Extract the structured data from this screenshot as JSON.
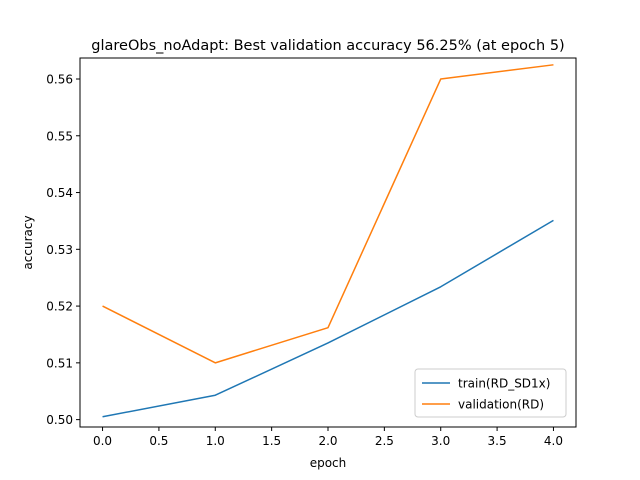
{
  "chart_data": {
    "type": "line",
    "title": "glareObs_noAdapt: Best validation accuracy 56.25% (at epoch 5)",
    "xlabel": "epoch",
    "ylabel": "accuracy",
    "xlim": [
      -0.2,
      4.2
    ],
    "ylim": [
      0.4987,
      0.5637
    ],
    "xticks": [
      0.0,
      0.5,
      1.0,
      1.5,
      2.0,
      2.5,
      3.0,
      3.5,
      4.0
    ],
    "xtick_labels": [
      "0.0",
      "0.5",
      "1.0",
      "1.5",
      "2.0",
      "2.5",
      "3.0",
      "3.5",
      "4.0"
    ],
    "yticks": [
      0.5,
      0.51,
      0.52,
      0.53,
      0.54,
      0.55,
      0.56
    ],
    "ytick_labels": [
      "0.50",
      "0.51",
      "0.52",
      "0.53",
      "0.54",
      "0.55",
      "0.56"
    ],
    "grid": false,
    "legend_position": "lower-right",
    "x": [
      0,
      1,
      2,
      3,
      4
    ],
    "series": [
      {
        "name": "train(RD_SD1x)",
        "color": "#1f77b4",
        "values": [
          0.5005,
          0.5043,
          0.5135,
          0.5234,
          0.5351
        ]
      },
      {
        "name": "validation(RD)",
        "color": "#ff7f0e",
        "values": [
          0.52,
          0.51,
          0.5162,
          0.56,
          0.5625
        ]
      }
    ]
  }
}
